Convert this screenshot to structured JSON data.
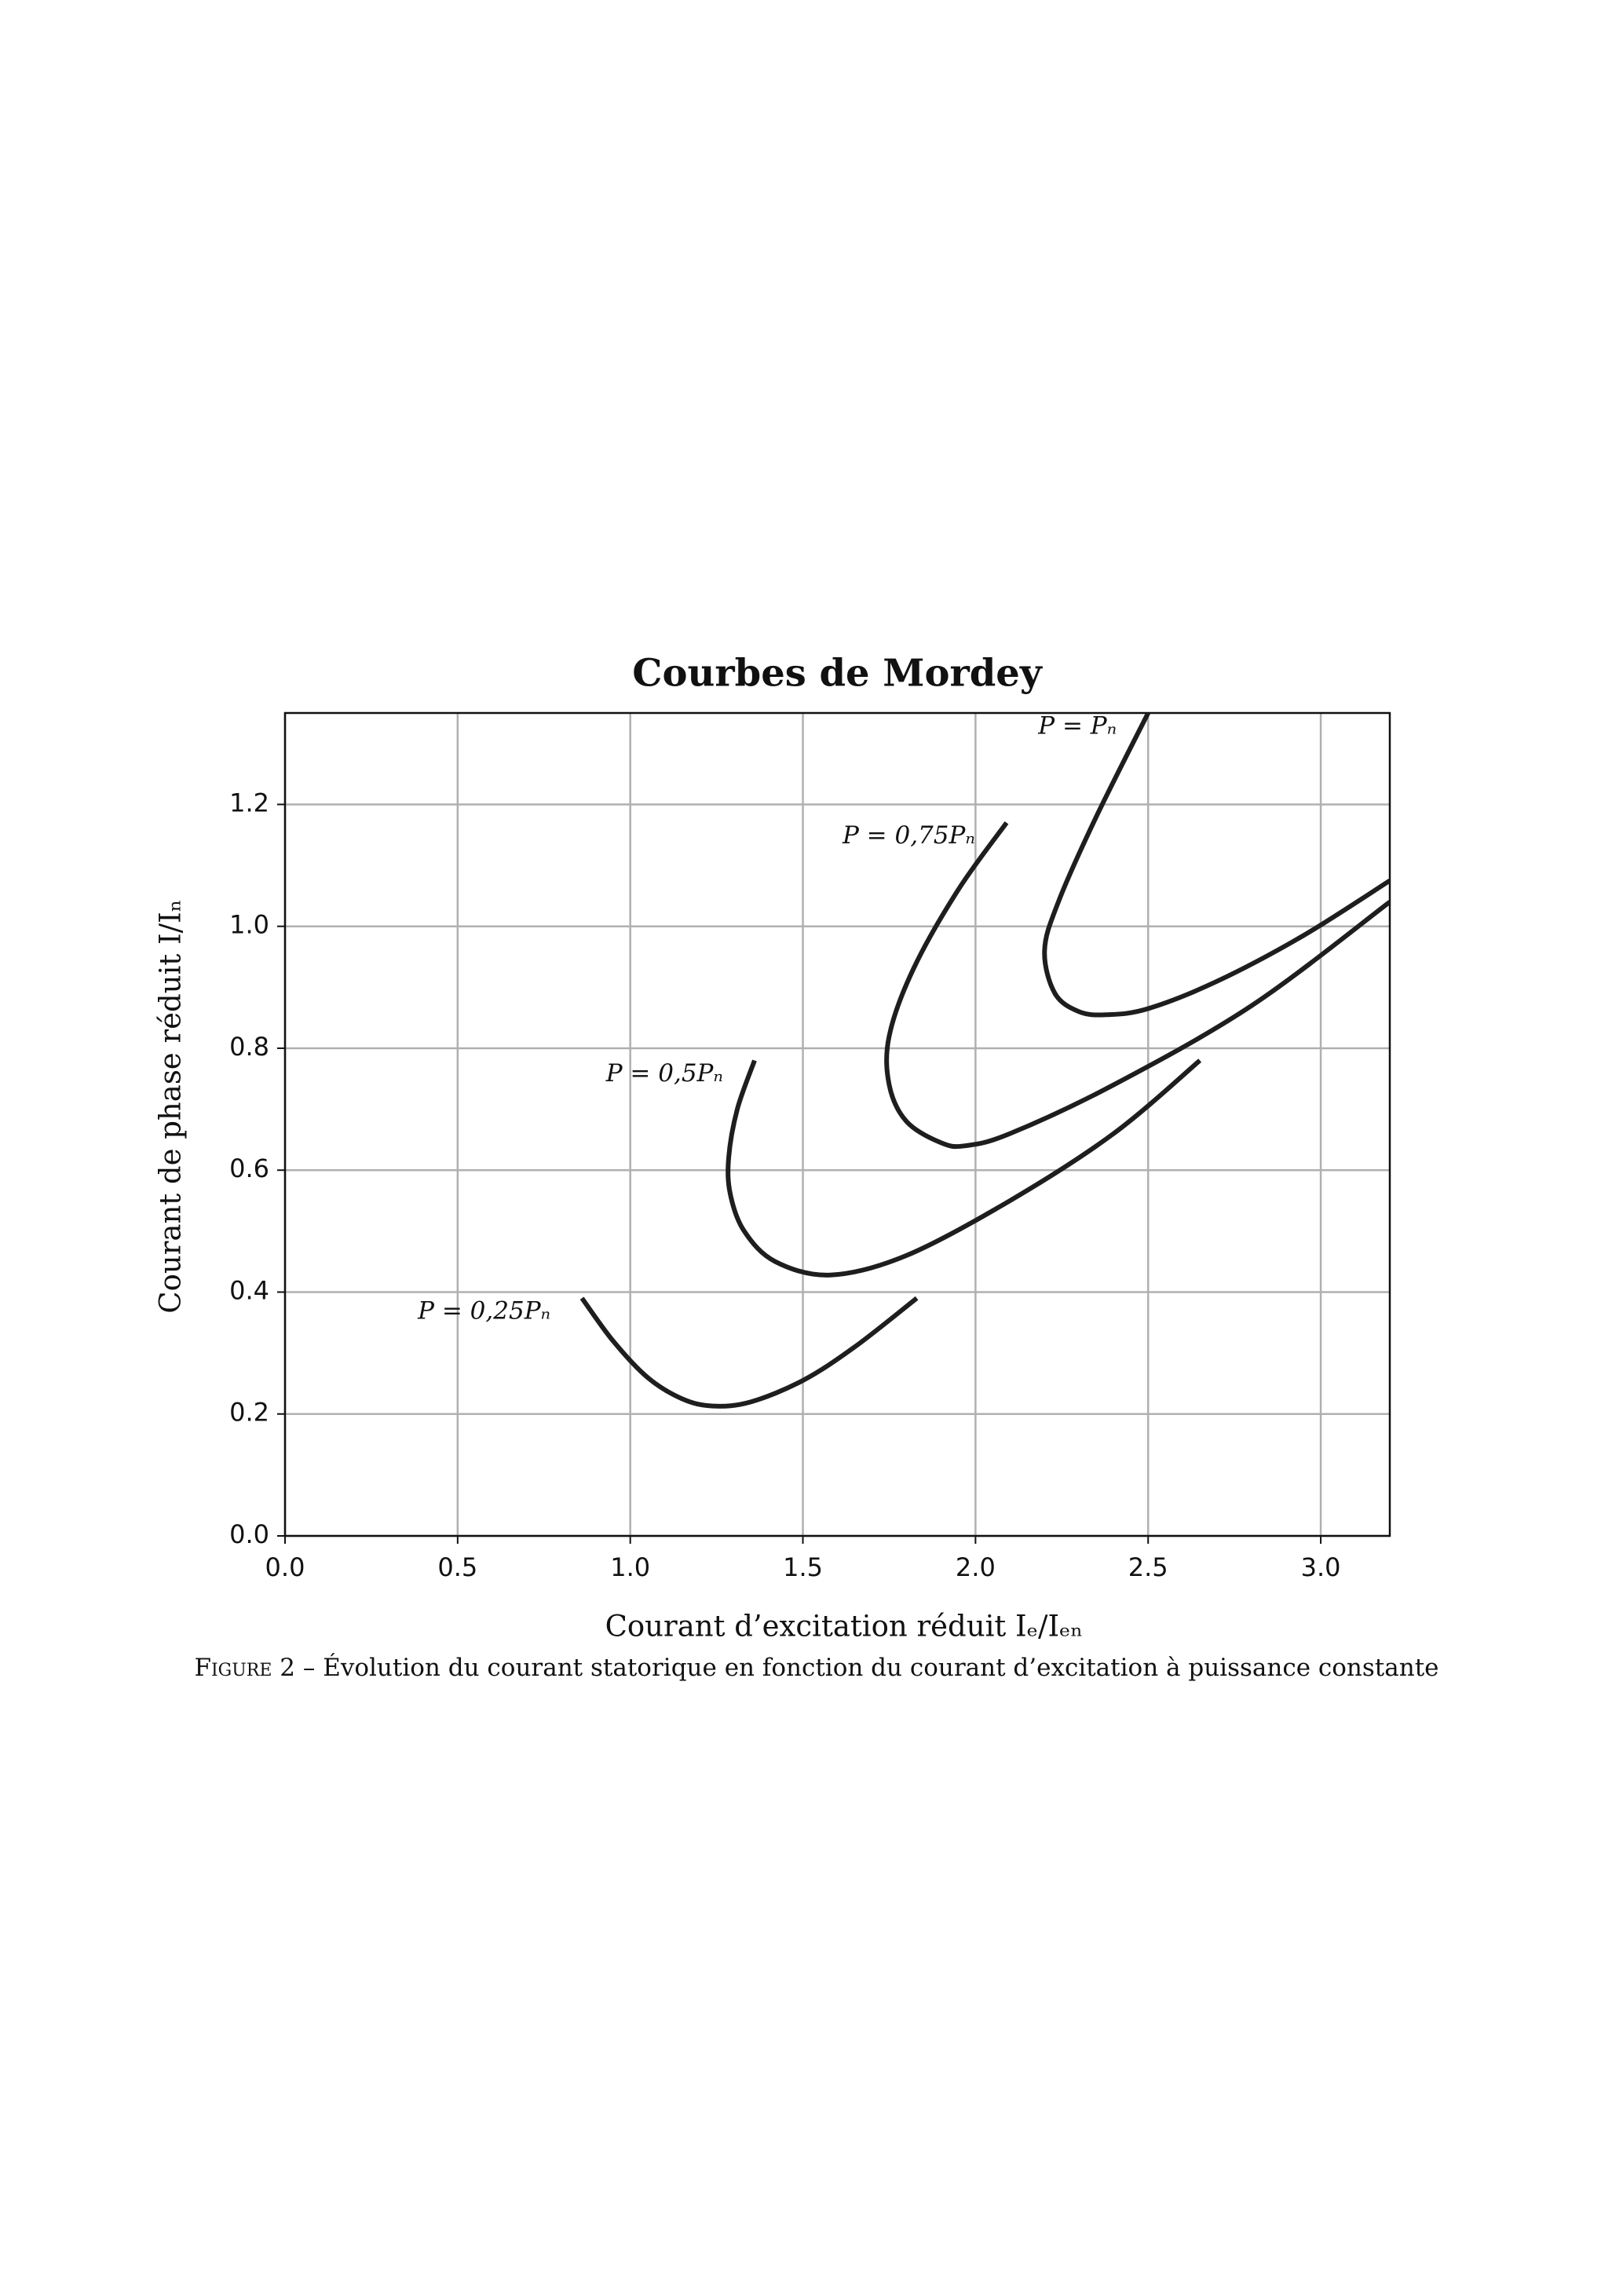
{
  "chart_data": {
    "type": "line",
    "title": "Courbes de Mordey",
    "xlabel": "Courant d’excitation réduit Iₑ/Iₑₙ",
    "ylabel": "Courant de phase réduit  I/Iₙ",
    "xlim": [
      0,
      3.2
    ],
    "ylim": [
      0,
      1.35
    ],
    "xticks": [
      {
        "value": 0,
        "label": "0.0"
      },
      {
        "value": 0.5,
        "label": "0.5"
      },
      {
        "value": 1,
        "label": "1.0"
      },
      {
        "value": 1.5,
        "label": "1.5"
      },
      {
        "value": 2,
        "label": "2.0"
      },
      {
        "value": 2.5,
        "label": "2.5"
      },
      {
        "value": 3,
        "label": "3.0"
      }
    ],
    "yticks": [
      {
        "value": 0,
        "label": "0.0"
      },
      {
        "value": 0.2,
        "label": "0.2"
      },
      {
        "value": 0.4,
        "label": "0.4"
      },
      {
        "value": 0.6,
        "label": "0.6"
      },
      {
        "value": 0.8,
        "label": "0.8"
      },
      {
        "value": 1,
        "label": "1.0"
      },
      {
        "value": 1.2,
        "label": "1.2"
      }
    ],
    "grid": true,
    "series": [
      {
        "name": "P = 0,25Pₙ",
        "color": "#1e1e1e",
        "x": [
          0.86,
          0.95,
          1.05,
          1.15,
          1.24,
          1.35,
          1.5,
          1.65,
          1.83
        ],
        "values": [
          0.39,
          0.32,
          0.26,
          0.225,
          0.213,
          0.22,
          0.255,
          0.31,
          0.39
        ]
      },
      {
        "name": "P = 0,5Pₙ",
        "color": "#1e1e1e",
        "x": [
          1.36,
          1.31,
          1.285,
          1.29,
          1.33,
          1.42,
          1.58,
          1.8,
          2.1,
          2.4,
          2.65
        ],
        "values": [
          0.78,
          0.7,
          0.62,
          0.56,
          0.5,
          0.45,
          0.428,
          0.46,
          0.55,
          0.66,
          0.78
        ]
      },
      {
        "name": "P = 0,75Pₙ",
        "color": "#1e1e1e",
        "x": [
          2.09,
          1.95,
          1.82,
          1.75,
          1.75,
          1.8,
          1.9,
          1.97,
          2.1,
          2.4,
          2.8,
          3.2
        ],
        "values": [
          1.17,
          1.06,
          0.93,
          0.82,
          0.74,
          0.68,
          0.645,
          0.64,
          0.66,
          0.74,
          0.87,
          1.04
        ]
      },
      {
        "name": "P = Pₙ",
        "color": "#1e1e1e",
        "x": [
          2.5,
          2.35,
          2.24,
          2.2,
          2.23,
          2.3,
          2.38,
          2.5,
          2.7,
          2.95,
          3.2
        ],
        "values": [
          1.35,
          1.18,
          1.04,
          0.96,
          0.89,
          0.86,
          0.855,
          0.865,
          0.91,
          0.985,
          1.075
        ]
      }
    ]
  },
  "caption": {
    "label": "Figure 2",
    "text": "– Évolution du courant statorique en fonction du courant d’excitation à puissance constante"
  }
}
